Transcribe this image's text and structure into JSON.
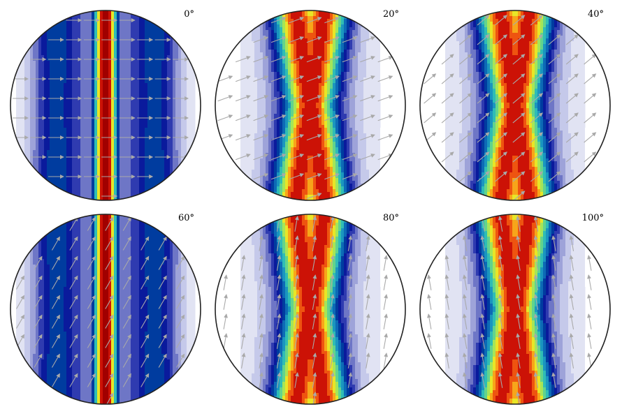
{
  "panels": [
    {
      "label": "0°",
      "angle_deg": 0,
      "pattern": "peak"
    },
    {
      "label": "20°",
      "angle_deg": 20,
      "pattern": "twin"
    },
    {
      "label": "40°",
      "angle_deg": 40,
      "pattern": "twin"
    },
    {
      "label": "60°",
      "angle_deg": 60,
      "pattern": "peak"
    },
    {
      "label": "80°",
      "angle_deg": 80,
      "pattern": "twin"
    },
    {
      "label": "100°",
      "angle_deg": 100,
      "pattern": "twin"
    }
  ],
  "colors": {
    "outline": "#222222",
    "arrow": "#a9a9a9",
    "ramp": [
      "#ffffff",
      "#e1e3f3",
      "#c5c9ea",
      "#9ea3d9",
      "#6e76c6",
      "#2f3bb0",
      "#0a1a9c",
      "#003c9f",
      "#0d6ab5",
      "#1a95bf",
      "#2fbcb5",
      "#62d38d",
      "#a6e558",
      "#e8e627",
      "#f7a51a",
      "#ee5410",
      "#cc1206",
      "#a10000"
    ]
  }
}
